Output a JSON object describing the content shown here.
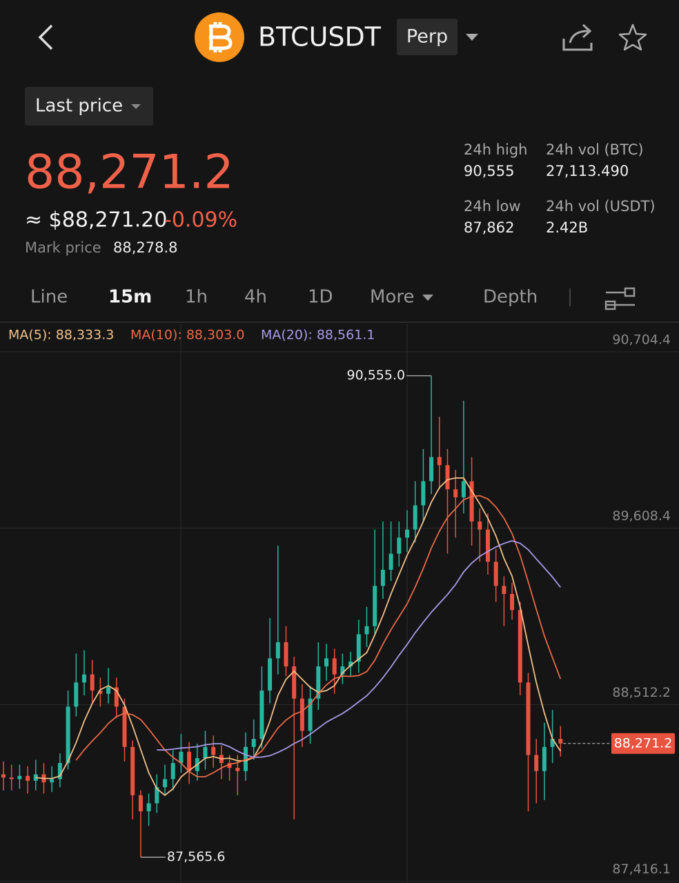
{
  "header": {
    "symbol": "BTCUSDT",
    "contract": "Perp"
  },
  "price_type": "Last price",
  "ticker": {
    "last_price": "88,271.2",
    "usd_price": "≈ $88,271.20",
    "change": "-0.09%",
    "mark_price_label": "Mark price",
    "mark_price": "88,278.8",
    "stats": [
      {
        "label": "24h high",
        "value": "90,555"
      },
      {
        "label": "24h vol (BTC)",
        "value": "27,113.490"
      },
      {
        "label": "24h low",
        "value": "87,862"
      },
      {
        "label": "24h vol (USDT)",
        "value": "2.42B"
      }
    ]
  },
  "tabs": [
    "Line",
    "15m",
    "1h",
    "4h",
    "1D",
    "More",
    "Depth"
  ],
  "chart_data": {
    "type": "candlestick",
    "up_color": "#2ab5a0",
    "down_color": "#e8533f",
    "ma_legend": [
      {
        "label": "MA(5): 88,333.3",
        "period": 5,
        "color": "#f2c18a"
      },
      {
        "label": "MA(10): 88,303.0",
        "period": 10,
        "color": "#e96a48"
      },
      {
        "label": "MA(20): 88,561.1",
        "period": 20,
        "color": "#a99ae8"
      }
    ],
    "open": [
      88080,
      88060,
      88050,
      88070,
      88040,
      88080,
      88030,
      88050,
      88150,
      88500,
      88650,
      88700,
      88600,
      88580,
      88620,
      88500,
      88250,
      87950,
      87850,
      87900,
      88000,
      88050,
      88150,
      88220,
      88100,
      88180,
      88250,
      88200,
      88150,
      88120,
      88100,
      88250,
      88300,
      88600,
      88800,
      88900,
      88750,
      88550,
      88350,
      88550,
      88750,
      88800,
      88700,
      88750,
      88780,
      88950,
      89000,
      89250,
      89350,
      89450,
      89550,
      89600,
      89750,
      89900,
      90050,
      90000,
      89850,
      89800,
      89900,
      89650,
      89600,
      89400,
      89250,
      89200,
      89100,
      88650,
      88200,
      88100,
      88250,
      88300
    ],
    "high": [
      88160,
      88140,
      88140,
      88130,
      88170,
      88150,
      88130,
      88210,
      88600,
      88830,
      88850,
      88790,
      88680,
      88740,
      88680,
      88550,
      88290,
      87980,
      87960,
      88080,
      88140,
      88230,
      88330,
      88280,
      88270,
      88350,
      88320,
      88260,
      88200,
      88200,
      88340,
      88420,
      88750,
      89050,
      89500,
      89000,
      88810,
      88640,
      88630,
      88900,
      88890,
      88860,
      88830,
      88840,
      89040,
      89120,
      89600,
      89650,
      89650,
      89650,
      89720,
      89900,
      90100,
      90555,
      90300,
      90100,
      89970,
      90400,
      90050,
      89730,
      89700,
      89480,
      89310,
      89270,
      89150,
      88710,
      88300,
      88400,
      88480,
      88380
    ],
    "low": [
      87980,
      87980,
      87990,
      87960,
      87980,
      87960,
      87970,
      88000,
      88110,
      88440,
      88570,
      88530,
      88500,
      88520,
      88430,
      88160,
      87800,
      87565.6,
      87760,
      87840,
      87950,
      87980,
      88090,
      88020,
      88040,
      88110,
      88120,
      88050,
      88040,
      87950,
      88040,
      88170,
      88240,
      88520,
      88700,
      88690,
      87800,
      88250,
      88270,
      88480,
      88660,
      88580,
      88640,
      88690,
      88710,
      88870,
      88940,
      89170,
      89280,
      89370,
      89460,
      89520,
      89650,
      89820,
      89850,
      89450,
      89550,
      89700,
      89500,
      89400,
      89320,
      89150,
      89000,
      89040,
      88570,
      87850,
      87900,
      87920,
      88150,
      88190
    ],
    "close": [
      88060,
      88050,
      88070,
      88040,
      88080,
      88030,
      88050,
      88150,
      88500,
      88650,
      88700,
      88600,
      88580,
      88620,
      88500,
      88250,
      87950,
      87850,
      87900,
      88000,
      88050,
      88150,
      88220,
      88100,
      88180,
      88250,
      88200,
      88150,
      88120,
      88100,
      88250,
      88300,
      88600,
      88800,
      88900,
      88750,
      88550,
      88350,
      88550,
      88750,
      88800,
      88700,
      88750,
      88780,
      88950,
      89000,
      89250,
      89350,
      89450,
      89550,
      89600,
      89750,
      89900,
      90050,
      90000,
      89850,
      89800,
      89900,
      89650,
      89600,
      89400,
      89250,
      89200,
      89100,
      88650,
      88200,
      88100,
      88250,
      88300,
      88271.2
    ],
    "ylim": [
      87405,
      90875
    ],
    "yticks": [
      {
        "value": 90704.4,
        "label": "90,704.4"
      },
      {
        "value": 89608.4,
        "label": "89,608.4"
      },
      {
        "value": 88512.2,
        "label": "88,512.2"
      },
      {
        "value": 87416.1,
        "label": "87,416.1"
      }
    ],
    "high_marker": {
      "value": 90555,
      "label": "90,555.0"
    },
    "low_marker": {
      "value": 87565.6,
      "label": "87,565.6"
    },
    "last_marker": {
      "value": 88271.2,
      "label": "88,271.2"
    },
    "grid": true
  }
}
